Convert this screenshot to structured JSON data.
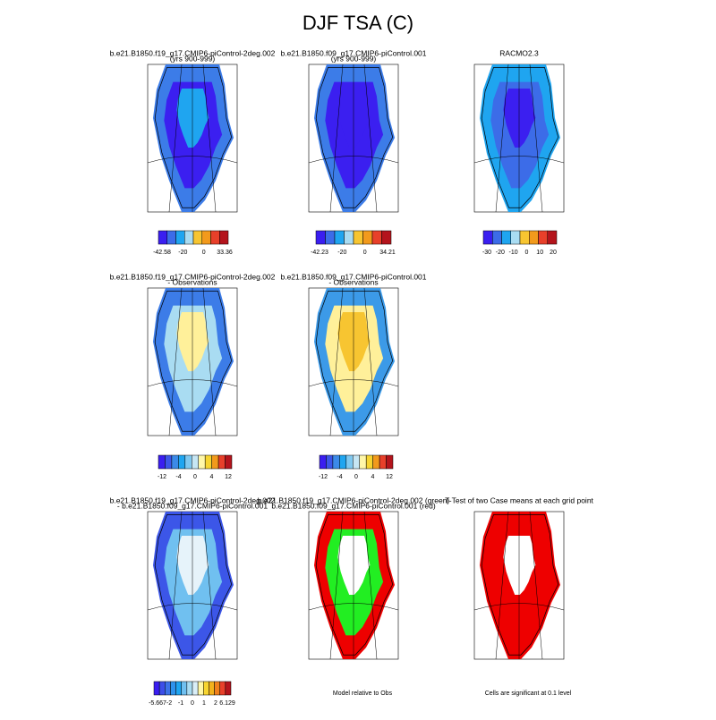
{
  "title": "DJF TSA (C)",
  "panels": [
    {
      "title": [
        "b.e21.B1850.f19_g17.CMIP6-piControl-2deg.002",
        "(yrs 900-999)"
      ],
      "colorbar": [
        "-42.58",
        "-20",
        "0",
        "33.36"
      ]
    },
    {
      "title": [
        "b.e21.B1850.f09_g17.CMIP6-piControl.001",
        "(yrs 900-999)"
      ],
      "colorbar": [
        "-42.23",
        "-20",
        "0",
        "34.21"
      ]
    },
    {
      "title": [
        "RACMO2.3"
      ],
      "colorbar": [
        "-30",
        "-20",
        "-10",
        "0",
        "10",
        "20"
      ]
    },
    {
      "title": [
        "b.e21.B1850.f19_g17.CMIP6-piControl-2deg.002",
        "- Observations"
      ],
      "colorbar": [
        "-12",
        "-4",
        "0",
        "4",
        "12"
      ]
    },
    {
      "title": [
        "b.e21.B1850.f09_g17.CMIP6-piControl.001",
        "- Observations"
      ],
      "colorbar": [
        "-12",
        "-4",
        "0",
        "4",
        "12"
      ]
    },
    {
      "title": [
        "b.e21.B1850.f19_g17.CMIP6-piControl-2deg.002",
        "- b.e21.B1850.f09_g17.CMIP6-piControl.001"
      ],
      "colorbar": [
        "-5.667",
        "-2",
        "-1",
        "0",
        "1",
        "2",
        "6.129"
      ]
    },
    {
      "title": [
        "b.e21.B1850.f19_g17.CMIP6-piControl-2deg.002 (green)",
        "b.e21.B1850.f09_g17.CMIP6-piControl.001 (red)"
      ],
      "footer": "Model relative to Obs"
    },
    {
      "title": [
        "T-Test of two Case means at each grid point"
      ],
      "footer": "Cells are significant at 0.1 level"
    }
  ]
}
